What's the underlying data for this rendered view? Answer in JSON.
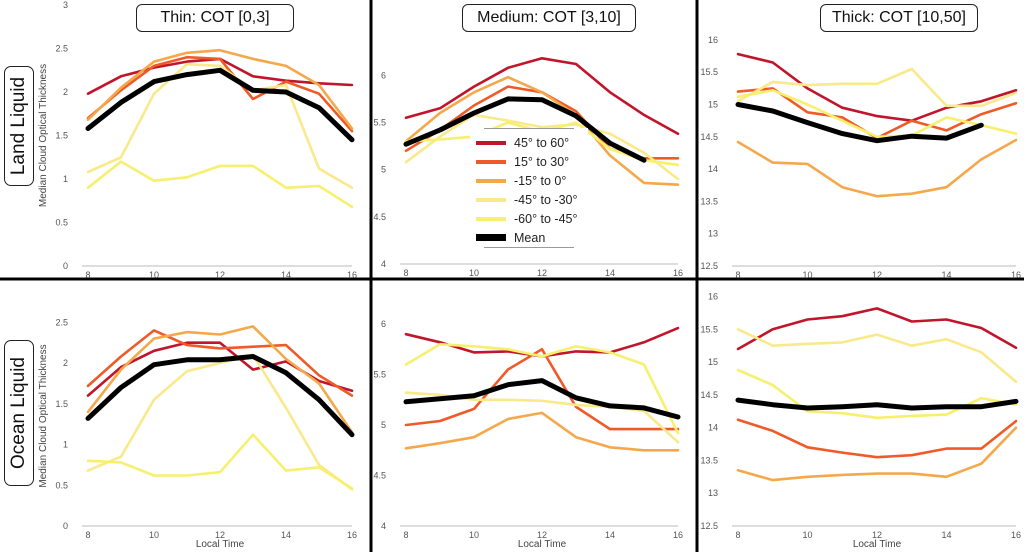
{
  "series_colors": {
    "45° to 60°": "#c0152a",
    "15° to 30°": "#f05a28",
    "-15° to 0°": "#f5a84a",
    "-45° to -30°": "#fae98a",
    "-60° to -45°": "#f7ef6e",
    "Mean": "#000000"
  },
  "column_titles": [
    "Thin: COT [0,3]",
    "Medium: COT [3,10]",
    "Thick: COT [10,50]"
  ],
  "row_titles": [
    "Land Liquid",
    "Ocean Liquid"
  ],
  "legend": {
    "entries": [
      "45° to 60°",
      "15° to 30°",
      "-15° to 0°",
      "-45° to -30°",
      "-60° to -45°",
      "Mean"
    ]
  },
  "chart_data": [
    {
      "type": "line",
      "panel": "land-thin",
      "ylabel": "Median Cloud Optical Thickness",
      "xlabel": "",
      "xlim": [
        8,
        16
      ],
      "ylim": [
        0,
        3
      ],
      "xticks": [
        "8",
        "10",
        "12",
        "14",
        "16"
      ],
      "yticks": [
        "0",
        "0.5",
        "1",
        "1.5",
        "2",
        "2.5",
        "3"
      ],
      "x": [
        8,
        9,
        10,
        11,
        12,
        13,
        14,
        15,
        16
      ],
      "series": [
        {
          "name": "45° to 60°",
          "values": [
            1.98,
            2.18,
            2.28,
            2.35,
            2.38,
            2.18,
            2.13,
            2.1,
            2.08
          ]
        },
        {
          "name": "15° to 30°",
          "values": [
            1.7,
            2.02,
            2.3,
            2.4,
            2.38,
            1.92,
            2.12,
            1.98,
            1.55
          ]
        },
        {
          "name": "-15° to 0°",
          "values": [
            1.68,
            2.05,
            2.35,
            2.45,
            2.48,
            2.38,
            2.3,
            2.08,
            1.58
          ]
        },
        {
          "name": "-45° to -30°",
          "values": [
            1.08,
            1.25,
            1.98,
            2.32,
            2.3,
            2.02,
            2.08,
            1.12,
            0.9
          ]
        },
        {
          "name": "-60° to -45°",
          "values": [
            0.9,
            1.2,
            0.98,
            1.02,
            1.15,
            1.15,
            0.9,
            0.92,
            0.68
          ]
        },
        {
          "name": "Mean",
          "values": [
            1.58,
            1.88,
            2.12,
            2.2,
            2.25,
            2.02,
            2.0,
            1.82,
            1.45
          ]
        }
      ]
    },
    {
      "type": "line",
      "panel": "land-medium",
      "ylabel": "",
      "xlabel": "",
      "xlim": [
        8,
        16
      ],
      "ylim": [
        4,
        6.3
      ],
      "xticks": [
        "8",
        "10",
        "12",
        "14",
        "16"
      ],
      "yticks": [
        "4",
        "4.5",
        "5",
        "5.5",
        "6"
      ],
      "x": [
        8,
        9,
        10,
        11,
        12,
        13,
        14,
        15,
        16
      ],
      "series": [
        {
          "name": "45° to 60°",
          "values": [
            5.55,
            5.65,
            5.88,
            6.08,
            6.18,
            6.12,
            5.82,
            5.58,
            5.38
          ]
        },
        {
          "name": "15° to 30°",
          "values": [
            5.2,
            5.42,
            5.68,
            5.88,
            5.82,
            5.62,
            5.22,
            5.12,
            5.12
          ]
        },
        {
          "name": "-15° to 0°",
          "values": [
            5.3,
            5.6,
            5.82,
            5.98,
            5.82,
            5.58,
            5.15,
            4.86,
            4.84
          ]
        },
        {
          "name": "-45° to -30°",
          "values": [
            5.08,
            5.35,
            5.58,
            5.52,
            5.45,
            5.48,
            5.38,
            5.18,
            4.9
          ]
        },
        {
          "name": "-60° to -45°",
          "values": [
            5.3,
            5.32,
            5.35,
            5.5,
            5.4,
            5.5,
            5.22,
            5.1,
            5.05
          ]
        },
        {
          "name": "Mean",
          "values": [
            5.27,
            5.42,
            5.6,
            5.75,
            5.74,
            5.57,
            5.28,
            5.1,
            null
          ]
        }
      ]
    },
    {
      "type": "line",
      "panel": "land-thick",
      "ylabel": "",
      "xlabel": "",
      "xlim": [
        8,
        16
      ],
      "ylim": [
        12.5,
        16.2
      ],
      "xticks": [
        "8",
        "10",
        "12",
        "14",
        "16"
      ],
      "yticks": [
        "12.5",
        "13",
        "13.5",
        "14",
        "14.5",
        "15",
        "15.5",
        "16"
      ],
      "x": [
        8,
        9,
        10,
        11,
        12,
        13,
        14,
        15,
        16
      ],
      "series": [
        {
          "name": "45° to 60°",
          "values": [
            15.78,
            15.65,
            15.25,
            14.95,
            14.82,
            14.75,
            14.95,
            15.05,
            15.22
          ]
        },
        {
          "name": "15° to 30°",
          "values": [
            15.2,
            15.25,
            14.88,
            14.8,
            14.48,
            14.75,
            14.6,
            14.85,
            15.02
          ]
        },
        {
          "name": "-15° to 0°",
          "values": [
            14.42,
            14.1,
            14.08,
            13.72,
            13.58,
            13.62,
            13.72,
            14.15,
            14.45
          ]
        },
        {
          "name": "-45° to -30°",
          "values": [
            15.05,
            15.35,
            15.3,
            15.32,
            15.32,
            15.55,
            14.98,
            14.98,
            15.18
          ]
        },
        {
          "name": "-60° to -45°",
          "values": [
            15.12,
            15.22,
            15.0,
            14.75,
            14.5,
            14.52,
            14.8,
            14.68,
            14.55
          ]
        },
        {
          "name": "Mean",
          "values": [
            15.0,
            14.9,
            14.72,
            14.55,
            14.44,
            14.51,
            14.48,
            14.68,
            null
          ]
        }
      ]
    },
    {
      "type": "line",
      "panel": "ocean-thin",
      "ylabel": "Median Cloud Optical Thickness",
      "xlabel": "Local Time",
      "xlim": [
        8,
        16
      ],
      "ylim": [
        0,
        2.7
      ],
      "xticks": [
        "8",
        "10",
        "12",
        "14",
        "16"
      ],
      "yticks": [
        "0",
        "0.5",
        "1",
        "1.5",
        "2",
        "2.5"
      ],
      "x": [
        8,
        9,
        10,
        11,
        12,
        13,
        14,
        15,
        16
      ],
      "series": [
        {
          "name": "45° to 60°",
          "values": [
            1.6,
            1.95,
            2.15,
            2.25,
            2.25,
            1.92,
            2.02,
            1.78,
            1.66
          ]
        },
        {
          "name": "15° to 30°",
          "values": [
            1.72,
            2.08,
            2.4,
            2.22,
            2.18,
            2.2,
            2.22,
            1.85,
            1.6
          ]
        },
        {
          "name": "-15° to 0°",
          "values": [
            1.4,
            1.92,
            2.3,
            2.38,
            2.35,
            2.45,
            2.05,
            1.75,
            1.15
          ]
        },
        {
          "name": "-45° to -30°",
          "values": [
            0.68,
            0.85,
            1.55,
            1.9,
            2.0,
            2.1,
            1.45,
            0.75,
            0.45
          ]
        },
        {
          "name": "-60° to -45°",
          "values": [
            0.8,
            0.78,
            0.62,
            0.62,
            0.66,
            1.12,
            0.68,
            0.72,
            0.46
          ]
        },
        {
          "name": "Mean",
          "values": [
            1.32,
            1.7,
            1.98,
            2.04,
            2.04,
            2.08,
            1.88,
            1.55,
            1.12
          ]
        }
      ]
    },
    {
      "type": "line",
      "panel": "ocean-medium",
      "ylabel": "",
      "xlabel": "Local Time",
      "xlim": [
        8,
        16
      ],
      "ylim": [
        4,
        6.1
      ],
      "xticks": [
        "8",
        "10",
        "12",
        "14",
        "16"
      ],
      "yticks": [
        "4",
        "4.5",
        "5",
        "5.5",
        "6"
      ],
      "x": [
        8,
        9,
        10,
        11,
        12,
        13,
        14,
        15,
        16
      ],
      "series": [
        {
          "name": "45° to 60°",
          "values": [
            5.9,
            5.82,
            5.72,
            5.73,
            5.68,
            5.73,
            5.72,
            5.82,
            5.96
          ]
        },
        {
          "name": "15° to 30°",
          "values": [
            5.0,
            5.04,
            5.16,
            5.55,
            5.75,
            5.18,
            4.96,
            4.96,
            4.96
          ]
        },
        {
          "name": "-15° to 0°",
          "values": [
            4.77,
            4.82,
            4.88,
            5.06,
            5.12,
            4.88,
            4.78,
            4.75,
            4.75
          ]
        },
        {
          "name": "-45° to -30°",
          "values": [
            5.32,
            5.3,
            5.25,
            5.25,
            5.24,
            5.2,
            5.18,
            5.14,
            4.83
          ]
        },
        {
          "name": "-60° to -45°",
          "values": [
            5.6,
            5.8,
            5.78,
            5.75,
            5.68,
            5.78,
            5.72,
            5.6,
            4.92
          ]
        },
        {
          "name": "Mean",
          "values": [
            5.23,
            5.26,
            5.29,
            5.4,
            5.44,
            5.27,
            5.19,
            5.17,
            5.08
          ]
        }
      ]
    },
    {
      "type": "line",
      "panel": "ocean-thick",
      "ylabel": "",
      "xlabel": "Local Time",
      "xlim": [
        8,
        16
      ],
      "ylim": [
        12.5,
        16.1
      ],
      "xticks": [
        "8",
        "10",
        "12",
        "14",
        "16"
      ],
      "yticks": [
        "12.5",
        "13",
        "13.5",
        "14",
        "14.5",
        "15",
        "15.5",
        "16"
      ],
      "x": [
        8,
        9,
        10,
        11,
        12,
        13,
        14,
        15,
        16
      ],
      "series": [
        {
          "name": "45° to 60°",
          "values": [
            15.2,
            15.5,
            15.65,
            15.7,
            15.82,
            15.62,
            15.65,
            15.52,
            15.22
          ]
        },
        {
          "name": "15° to 30°",
          "values": [
            14.12,
            13.95,
            13.7,
            13.62,
            13.55,
            13.58,
            13.68,
            13.68,
            14.1
          ]
        },
        {
          "name": "-15° to 0°",
          "values": [
            13.35,
            13.2,
            13.25,
            13.28,
            13.3,
            13.3,
            13.25,
            13.45,
            14.0
          ]
        },
        {
          "name": "-45° to -30°",
          "values": [
            15.5,
            15.25,
            15.28,
            15.3,
            15.42,
            15.25,
            15.35,
            15.15,
            14.7
          ]
        },
        {
          "name": "-60° to -45°",
          "values": [
            14.88,
            14.65,
            14.25,
            14.22,
            14.15,
            14.18,
            14.2,
            14.45,
            14.35
          ]
        },
        {
          "name": "Mean",
          "values": [
            14.42,
            14.35,
            14.3,
            14.32,
            14.35,
            14.3,
            14.32,
            14.32,
            14.4
          ]
        }
      ]
    }
  ]
}
